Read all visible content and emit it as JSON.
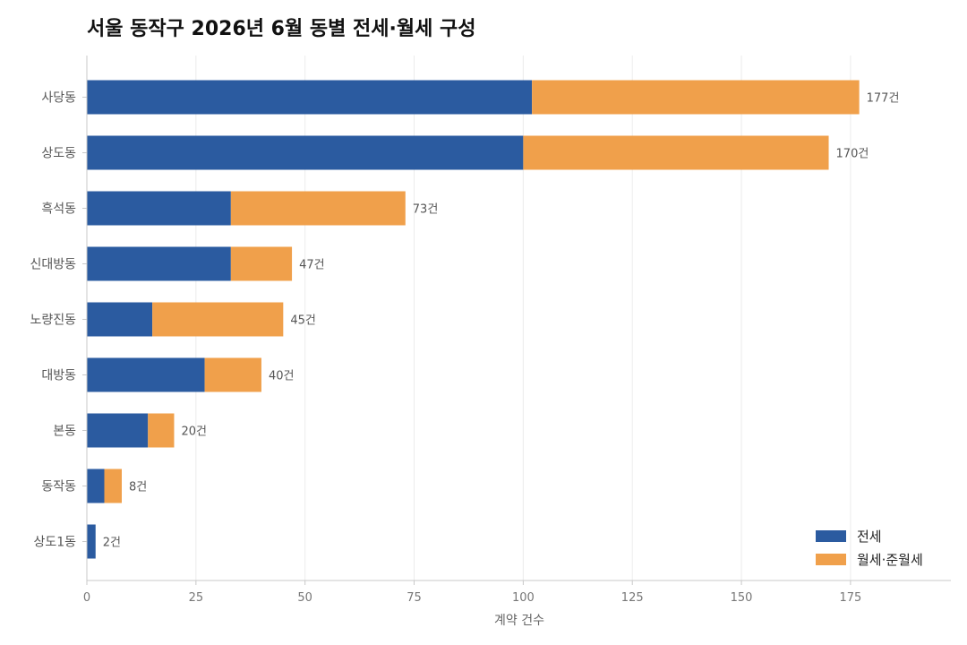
{
  "chart_data": {
    "type": "bar",
    "orientation": "horizontal",
    "stacked": true,
    "title": "서울 동작구 2026년 6월 동별 전세·월세 구성",
    "xlabel": "계약 건수",
    "ylabel": "",
    "xlim": [
      0,
      198
    ],
    "xticks": [
      0,
      25,
      50,
      75,
      100,
      125,
      150,
      175
    ],
    "grid": "vertical",
    "legend_position": "bottom-right",
    "categories": [
      "사당동",
      "상도동",
      "흑석동",
      "신대방동",
      "노량진동",
      "대방동",
      "본동",
      "동작동",
      "상도1동"
    ],
    "series": [
      {
        "name": "전세",
        "color": "#2b5ba0",
        "values": [
          102,
          100,
          33,
          33,
          15,
          27,
          14,
          4,
          2
        ]
      },
      {
        "name": "월세·준월세",
        "color": "#f0a04b",
        "values": [
          75,
          70,
          40,
          14,
          30,
          13,
          6,
          4,
          0
        ]
      }
    ],
    "totals": [
      177,
      170,
      73,
      47,
      45,
      40,
      20,
      8,
      2
    ],
    "total_label_suffix": "건"
  }
}
